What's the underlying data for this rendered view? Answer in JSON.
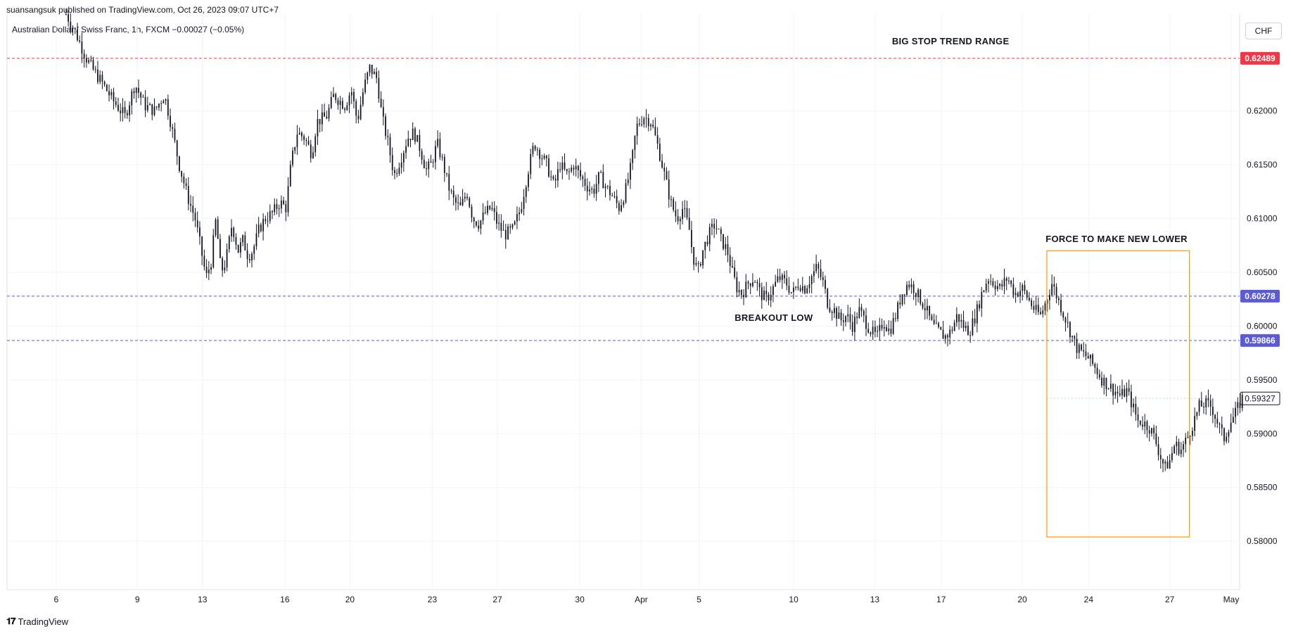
{
  "header": {
    "published": "suansangsuk published on TradingView.com, Oct 26, 2023 09:07 UTC+7",
    "symbol_line": "Australian Dollar / Swiss Franc, 1h, FXCM  −0.00027 (−0.05%)",
    "currency_button": "CHF"
  },
  "footer": {
    "brand": "TradingView"
  },
  "colors": {
    "candle": "#131722",
    "resistance": "#f23645",
    "support": "#5b5bd6",
    "box": "#ff9800",
    "grid": "#f0f3fa"
  },
  "chart_data": {
    "type": "candlestick",
    "instrument": "AUDCHF",
    "timeframe": "1h",
    "ylim": [
      0.5755,
      0.629
    ],
    "y_ticks": [
      0.58,
      0.585,
      0.59,
      0.595,
      0.6,
      0.605,
      0.61,
      0.615,
      0.62
    ],
    "y_tick_labels": [
      "0.58000",
      "0.58500",
      "0.59000",
      "0.59500",
      "0.60000",
      "0.60500",
      "0.61000",
      "0.61500",
      "0.62000"
    ],
    "x_ticks": [
      {
        "label": "6",
        "t": 0.04
      },
      {
        "label": "9",
        "t": 0.106
      },
      {
        "label": "13",
        "t": 0.159
      },
      {
        "label": "16",
        "t": 0.226
      },
      {
        "label": "20",
        "t": 0.279
      },
      {
        "label": "23",
        "t": 0.346
      },
      {
        "label": "27",
        "t": 0.399
      },
      {
        "label": "30",
        "t": 0.466
      },
      {
        "label": "Apr",
        "t": 0.516
      },
      {
        "label": "5",
        "t": 0.563
      },
      {
        "label": "10",
        "t": 0.64
      },
      {
        "label": "13",
        "t": 0.706
      },
      {
        "label": "17",
        "t": 0.76
      },
      {
        "label": "20",
        "t": 0.826
      },
      {
        "label": "24",
        "t": 0.88
      },
      {
        "label": "27",
        "t": 0.946
      },
      {
        "label": "May",
        "t": 0.996
      }
    ],
    "path": [
      [
        0.048,
        0.629
      ],
      [
        0.055,
        0.6275
      ],
      [
        0.064,
        0.625
      ],
      [
        0.069,
        0.624
      ],
      [
        0.078,
        0.6225
      ],
      [
        0.086,
        0.621
      ],
      [
        0.096,
        0.6195
      ],
      [
        0.104,
        0.6225
      ],
      [
        0.112,
        0.6205
      ],
      [
        0.12,
        0.62
      ],
      [
        0.128,
        0.6215
      ],
      [
        0.133,
        0.619
      ],
      [
        0.14,
        0.615
      ],
      [
        0.147,
        0.612
      ],
      [
        0.153,
        0.61
      ],
      [
        0.158,
        0.607
      ],
      [
        0.162,
        0.6045
      ],
      [
        0.166,
        0.606
      ],
      [
        0.17,
        0.61
      ],
      [
        0.174,
        0.605
      ],
      [
        0.178,
        0.606
      ],
      [
        0.183,
        0.6095
      ],
      [
        0.188,
        0.607
      ],
      [
        0.192,
        0.608
      ],
      [
        0.196,
        0.6065
      ],
      [
        0.2,
        0.607
      ],
      [
        0.205,
        0.609
      ],
      [
        0.21,
        0.61
      ],
      [
        0.216,
        0.6105
      ],
      [
        0.222,
        0.6115
      ],
      [
        0.227,
        0.611
      ],
      [
        0.231,
        0.615
      ],
      [
        0.236,
        0.618
      ],
      [
        0.242,
        0.6175
      ],
      [
        0.248,
        0.616
      ],
      [
        0.252,
        0.619
      ],
      [
        0.26,
        0.6195
      ],
      [
        0.266,
        0.6215
      ],
      [
        0.27,
        0.621
      ],
      [
        0.275,
        0.6205
      ],
      [
        0.28,
        0.622
      ],
      [
        0.285,
        0.619
      ],
      [
        0.29,
        0.622
      ],
      [
        0.295,
        0.624
      ],
      [
        0.301,
        0.623
      ],
      [
        0.305,
        0.6195
      ],
      [
        0.31,
        0.617
      ],
      [
        0.315,
        0.614
      ],
      [
        0.32,
        0.6155
      ],
      [
        0.326,
        0.6175
      ],
      [
        0.331,
        0.618
      ],
      [
        0.336,
        0.6165
      ],
      [
        0.341,
        0.6145
      ],
      [
        0.345,
        0.615
      ],
      [
        0.35,
        0.617
      ],
      [
        0.355,
        0.615
      ],
      [
        0.359,
        0.613
      ],
      [
        0.364,
        0.6115
      ],
      [
        0.369,
        0.611
      ],
      [
        0.374,
        0.6125
      ],
      [
        0.379,
        0.61
      ],
      [
        0.384,
        0.6095
      ],
      [
        0.389,
        0.6105
      ],
      [
        0.394,
        0.611
      ],
      [
        0.399,
        0.6095
      ],
      [
        0.405,
        0.6085
      ],
      [
        0.412,
        0.609
      ],
      [
        0.418,
        0.611
      ],
      [
        0.424,
        0.6145
      ],
      [
        0.429,
        0.617
      ],
      [
        0.434,
        0.616
      ],
      [
        0.439,
        0.615
      ],
      [
        0.445,
        0.613
      ],
      [
        0.45,
        0.615
      ],
      [
        0.456,
        0.614
      ],
      [
        0.461,
        0.615
      ],
      [
        0.466,
        0.614
      ],
      [
        0.472,
        0.613
      ],
      [
        0.477,
        0.6125
      ],
      [
        0.482,
        0.614
      ],
      [
        0.487,
        0.613
      ],
      [
        0.493,
        0.612
      ],
      [
        0.498,
        0.611
      ],
      [
        0.503,
        0.6125
      ],
      [
        0.508,
        0.615
      ],
      [
        0.512,
        0.6185
      ],
      [
        0.518,
        0.6195
      ],
      [
        0.524,
        0.619
      ],
      [
        0.53,
        0.6165
      ],
      [
        0.535,
        0.614
      ],
      [
        0.54,
        0.6115
      ],
      [
        0.545,
        0.61
      ],
      [
        0.55,
        0.611
      ],
      [
        0.555,
        0.609
      ],
      [
        0.558,
        0.6065
      ],
      [
        0.562,
        0.605
      ],
      [
        0.566,
        0.607
      ],
      [
        0.571,
        0.6085
      ],
      [
        0.576,
        0.6095
      ],
      [
        0.581,
        0.608
      ],
      [
        0.586,
        0.607
      ],
      [
        0.59,
        0.605
      ],
      [
        0.594,
        0.6035
      ],
      [
        0.598,
        0.603
      ],
      [
        0.603,
        0.604
      ],
      [
        0.608,
        0.6045
      ],
      [
        0.613,
        0.603
      ],
      [
        0.618,
        0.6025
      ],
      [
        0.623,
        0.6035
      ],
      [
        0.628,
        0.6045
      ],
      [
        0.634,
        0.604
      ],
      [
        0.639,
        0.603
      ],
      [
        0.644,
        0.604
      ],
      [
        0.649,
        0.6035
      ],
      [
        0.654,
        0.6045
      ],
      [
        0.659,
        0.6055
      ],
      [
        0.664,
        0.604
      ],
      [
        0.668,
        0.602
      ],
      [
        0.673,
        0.6015
      ],
      [
        0.678,
        0.6005
      ],
      [
        0.683,
        0.601
      ],
      [
        0.688,
        0.6
      ],
      [
        0.693,
        0.6015
      ],
      [
        0.698,
        0.6005
      ],
      [
        0.703,
        0.5995
      ],
      [
        0.708,
        0.599
      ],
      [
        0.713,
        0.6005
      ],
      [
        0.718,
        0.5995
      ],
      [
        0.723,
        0.601
      ],
      [
        0.728,
        0.603
      ],
      [
        0.733,
        0.604
      ],
      [
        0.738,
        0.6035
      ],
      [
        0.743,
        0.6025
      ],
      [
        0.748,
        0.6015
      ],
      [
        0.753,
        0.6
      ],
      [
        0.758,
        0.5995
      ],
      [
        0.763,
        0.599
      ],
      [
        0.768,
        0.5995
      ],
      [
        0.773,
        0.601
      ],
      [
        0.778,
        0.6
      ],
      [
        0.783,
        0.5995
      ],
      [
        0.788,
        0.601
      ],
      [
        0.793,
        0.603
      ],
      [
        0.798,
        0.6045
      ],
      [
        0.803,
        0.604
      ],
      [
        0.808,
        0.6035
      ],
      [
        0.814,
        0.6045
      ],
      [
        0.82,
        0.603
      ],
      [
        0.826,
        0.6035
      ],
      [
        0.831,
        0.6025
      ],
      [
        0.836,
        0.6015
      ],
      [
        0.841,
        0.601
      ],
      [
        0.846,
        0.6025
      ],
      [
        0.85,
        0.604
      ],
      [
        0.855,
        0.6025
      ],
      [
        0.86,
        0.601
      ],
      [
        0.865,
        0.5995
      ],
      [
        0.87,
        0.598
      ],
      [
        0.875,
        0.5975
      ],
      [
        0.88,
        0.597
      ],
      [
        0.886,
        0.596
      ],
      [
        0.891,
        0.595
      ],
      [
        0.896,
        0.5945
      ],
      [
        0.901,
        0.594
      ],
      [
        0.906,
        0.5935
      ],
      [
        0.911,
        0.594
      ],
      [
        0.916,
        0.5925
      ],
      [
        0.92,
        0.5912
      ],
      [
        0.925,
        0.591
      ],
      [
        0.93,
        0.5905
      ],
      [
        0.934,
        0.5895
      ],
      [
        0.938,
        0.588
      ],
      [
        0.942,
        0.5868
      ],
      [
        0.946,
        0.5875
      ],
      [
        0.95,
        0.589
      ],
      [
        0.955,
        0.5885
      ],
      [
        0.96,
        0.5895
      ],
      [
        0.965,
        0.591
      ],
      [
        0.97,
        0.5925
      ],
      [
        0.975,
        0.5928
      ],
      [
        0.98,
        0.5925
      ],
      [
        0.985,
        0.591
      ],
      [
        0.99,
        0.5895
      ],
      [
        0.995,
        0.591
      ],
      [
        1.0,
        0.592
      ],
      [
        1.005,
        0.5933
      ]
    ],
    "horizontal_lines": [
      {
        "name": "resistance",
        "value": 0.62489,
        "label": "0.62489",
        "color": "#f23645"
      },
      {
        "name": "support-upper",
        "value": 0.60278,
        "label": "0.60278",
        "color": "#5b5bd6"
      },
      {
        "name": "support-lower",
        "value": 0.59866,
        "label": "0.59866",
        "color": "#5b5bd6"
      }
    ],
    "last_price": {
      "value": 0.59327,
      "label": "0.59327"
    },
    "box": {
      "t0": 0.846,
      "t1": 0.962,
      "top": 0.607,
      "bottom": 0.5804
    },
    "annotations": [
      {
        "text": "BIG STOP TREND RANGE",
        "t": 0.72,
        "y": 0.6262
      },
      {
        "text": "FORCE TO MAKE NEW LOWER",
        "t": 0.845,
        "y": 0.6078
      },
      {
        "text": "BREAKOUT LOW",
        "t": 0.592,
        "y": 0.6005
      }
    ]
  }
}
